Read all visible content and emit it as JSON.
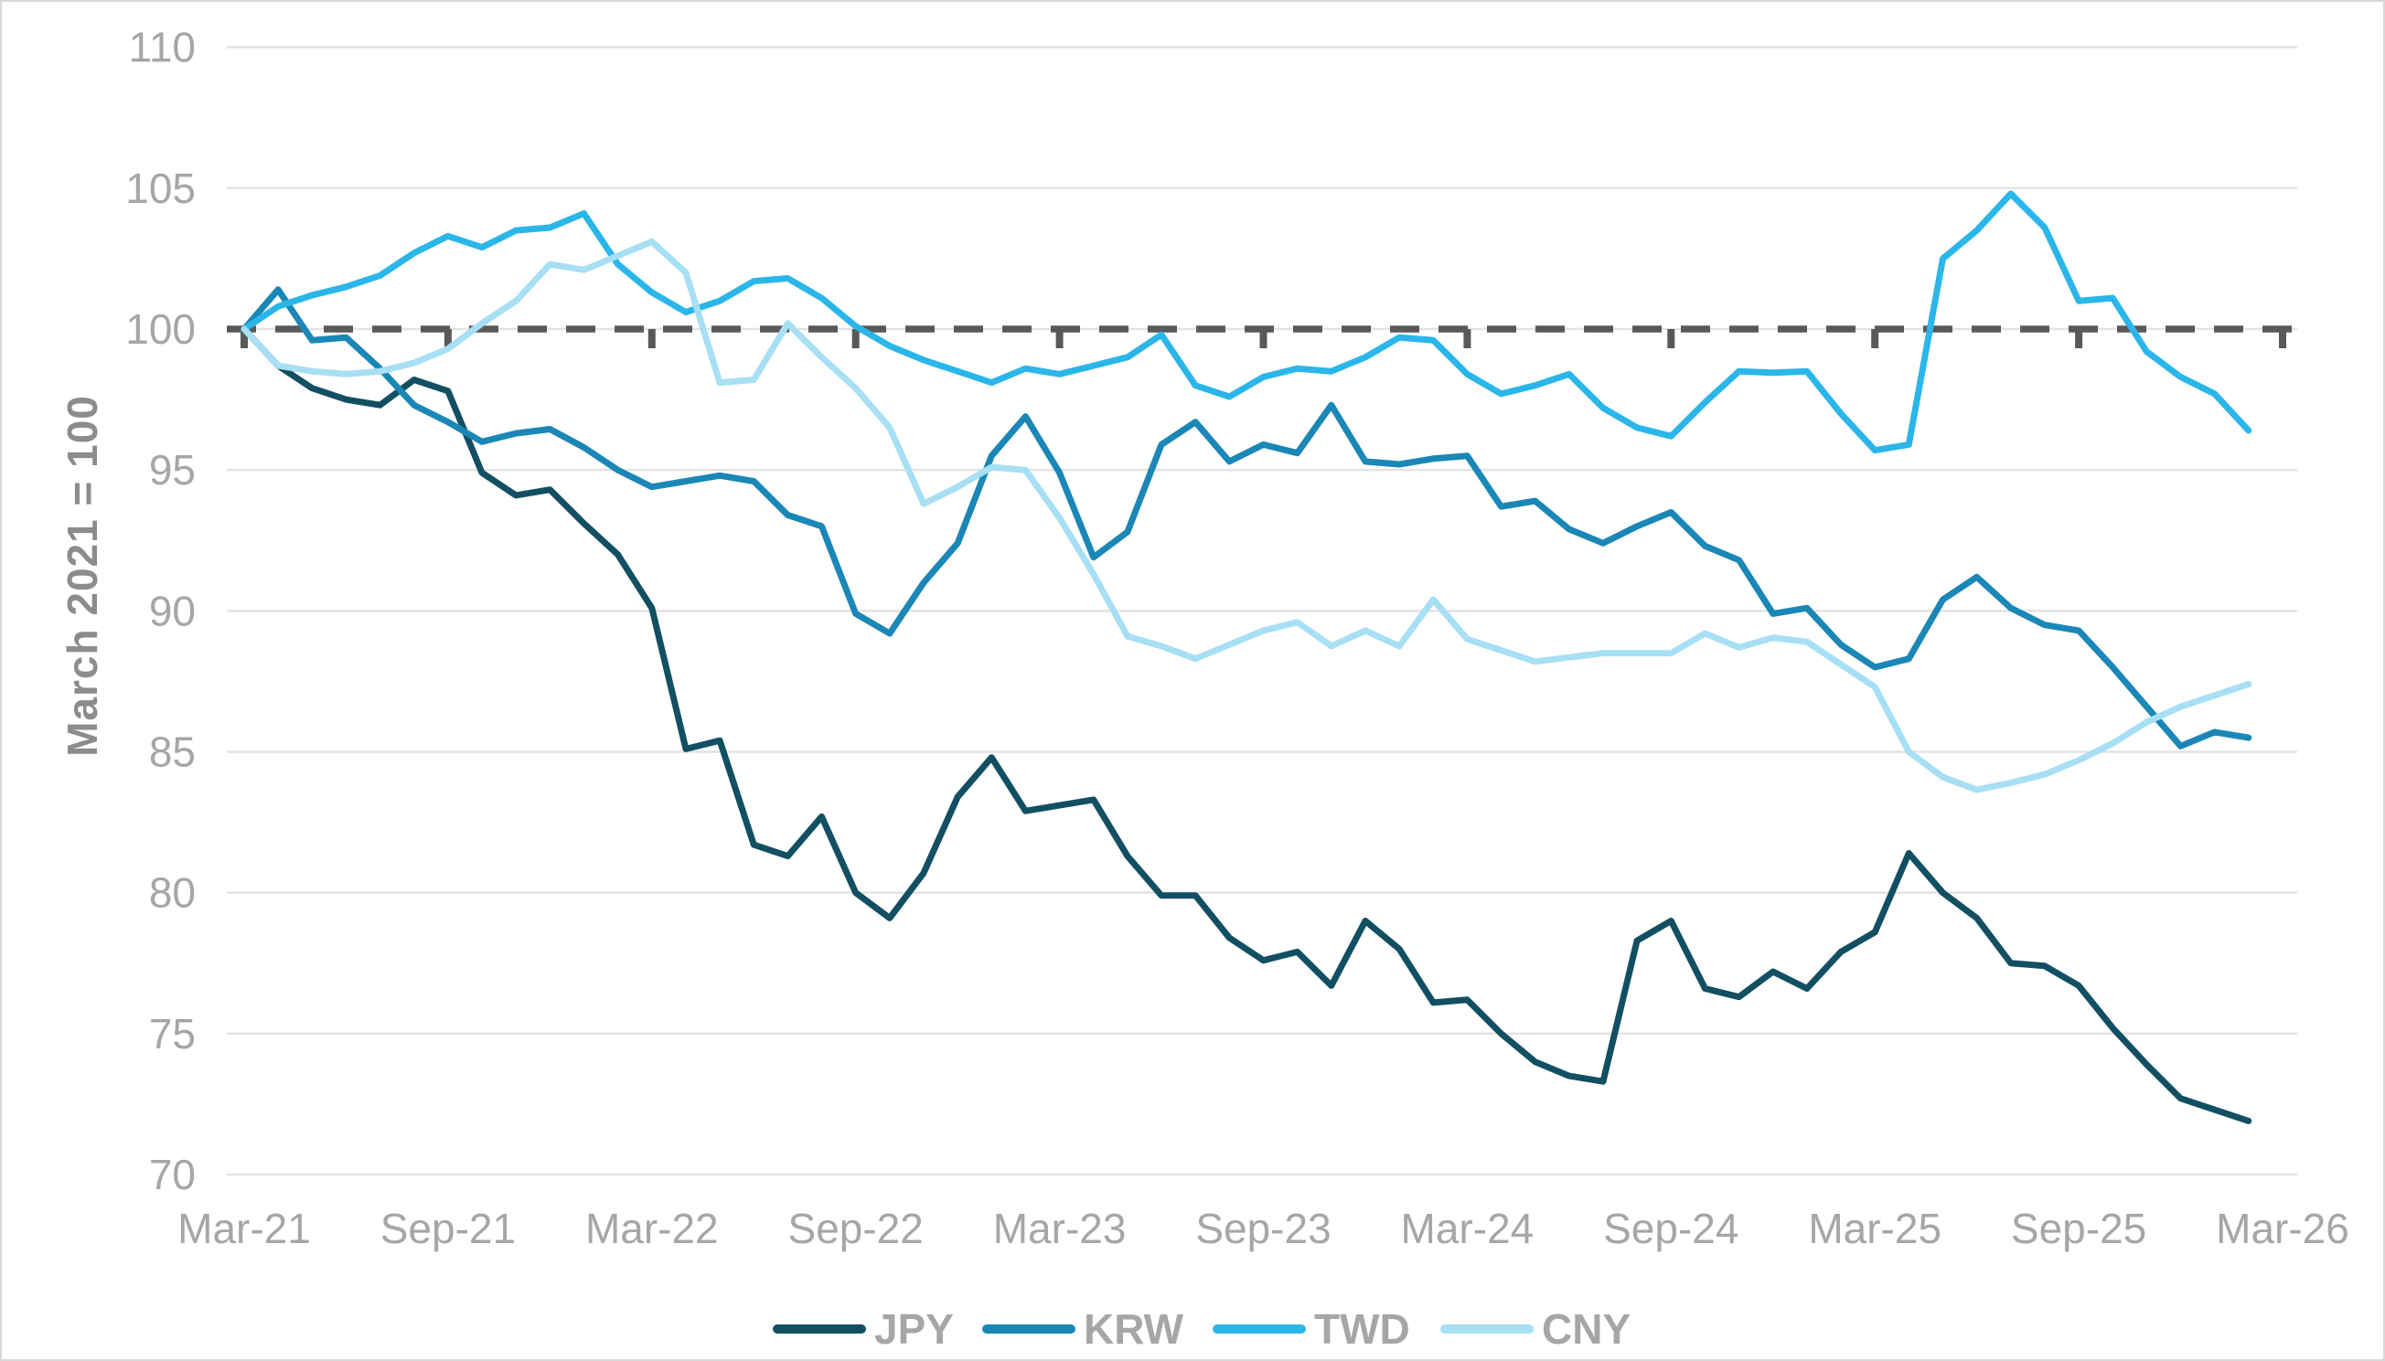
{
  "chart_data": {
    "type": "line",
    "title": "",
    "ylabel": "March 2021 = 100",
    "xlabel": "",
    "ylim": [
      70,
      110
    ],
    "ytick_labels": [
      "70",
      "75",
      "80",
      "85",
      "90",
      "95",
      "100",
      "105",
      "110"
    ],
    "xtick_labels": [
      "Mar-21",
      "Sep-21",
      "Mar-22",
      "Sep-22",
      "Mar-23",
      "Sep-23",
      "Mar-24",
      "Sep-24",
      "Mar-25",
      "Sep-25",
      "Mar-26"
    ],
    "grid": "horizontal-only",
    "legend_position": "bottom",
    "reference_line": {
      "value": 100,
      "style": "dashed",
      "color": "#595959"
    },
    "months": [
      "Mar-21",
      "Apr-21",
      "May-21",
      "Jun-21",
      "Jul-21",
      "Aug-21",
      "Sep-21",
      "Oct-21",
      "Nov-21",
      "Dec-21",
      "Jan-22",
      "Feb-22",
      "Mar-22",
      "Apr-22",
      "May-22",
      "Jun-22",
      "Jul-22",
      "Aug-22",
      "Sep-22",
      "Oct-22",
      "Nov-22",
      "Dec-22",
      "Jan-23",
      "Feb-23",
      "Mar-23",
      "Apr-23",
      "May-23",
      "Jun-23",
      "Jul-23",
      "Aug-23",
      "Sep-23",
      "Oct-23",
      "Nov-23",
      "Dec-23",
      "Jan-24",
      "Feb-24",
      "Mar-24",
      "Apr-24",
      "May-24",
      "Jun-24",
      "Jul-24",
      "Aug-24",
      "Sep-24",
      "Oct-24",
      "Nov-24",
      "Dec-24",
      "Jan-25",
      "Feb-25",
      "Mar-25",
      "Apr-25",
      "May-25",
      "Jun-25",
      "Jul-25",
      "Aug-25",
      "Sep-25",
      "Oct-25",
      "Nov-25",
      "Dec-25",
      "Jan-26",
      "Feb-26"
    ],
    "series": [
      {
        "name": "JPY",
        "color": "#124f62",
        "values": [
          100,
          98.7,
          97.9,
          97.5,
          97.3,
          98.2,
          97.8,
          94.9,
          94.1,
          94.3,
          93.1,
          92.0,
          90.1,
          85.1,
          85.4,
          81.7,
          81.3,
          82.7,
          80.0,
          79.1,
          80.7,
          83.4,
          84.8,
          82.9,
          83.1,
          83.3,
          81.3,
          79.9,
          79.9,
          78.4,
          77.6,
          77.9,
          76.7,
          79.0,
          78.0,
          76.1,
          76.2,
          75.0,
          74.0,
          73.5,
          73.3,
          78.3,
          79.0,
          76.6,
          76.3,
          77.2,
          76.6,
          77.9,
          78.6,
          81.4,
          80.0,
          79.1,
          77.5,
          77.4,
          76.7,
          75.2,
          73.9,
          72.7,
          72.3,
          71.9
        ]
      },
      {
        "name": "KRW",
        "color": "#1a87b6",
        "values": [
          100,
          101.4,
          99.6,
          99.7,
          98.6,
          97.3,
          96.7,
          96.0,
          96.3,
          96.45,
          95.8,
          95.0,
          94.4,
          94.6,
          94.8,
          94.6,
          93.4,
          93.0,
          89.9,
          89.2,
          91.0,
          92.4,
          95.5,
          96.9,
          94.9,
          91.9,
          92.8,
          95.9,
          96.7,
          95.3,
          95.9,
          95.6,
          97.3,
          95.3,
          95.2,
          95.4,
          95.5,
          93.7,
          93.9,
          92.9,
          92.4,
          93.0,
          93.5,
          92.3,
          91.8,
          89.9,
          90.1,
          88.8,
          88.0,
          88.3,
          90.4,
          91.2,
          90.1,
          89.5,
          89.3,
          88.0,
          86.6,
          85.2,
          85.7,
          85.5
        ]
      },
      {
        "name": "TWD",
        "color": "#2bb6e9",
        "values": [
          100,
          100.8,
          101.2,
          101.5,
          101.9,
          102.7,
          103.3,
          102.9,
          103.5,
          103.6,
          104.1,
          102.3,
          101.3,
          100.6,
          101.0,
          101.7,
          101.8,
          101.1,
          100.1,
          99.4,
          98.9,
          98.5,
          98.1,
          98.6,
          98.4,
          98.7,
          99.0,
          99.8,
          98.0,
          97.6,
          98.3,
          98.6,
          98.5,
          99.0,
          99.7,
          99.6,
          98.4,
          97.7,
          98.0,
          98.4,
          97.2,
          96.5,
          96.2,
          97.4,
          98.5,
          98.45,
          98.5,
          97.0,
          95.7,
          95.9,
          102.5,
          103.5,
          104.8,
          103.6,
          101.0,
          101.1,
          99.2,
          98.3,
          97.7,
          96.4
        ]
      },
      {
        "name": "CNY",
        "color": "#a7dff4",
        "values": [
          100,
          98.7,
          98.5,
          98.4,
          98.5,
          98.8,
          99.3,
          100.2,
          101.0,
          102.3,
          102.1,
          102.6,
          103.1,
          102.0,
          98.1,
          98.2,
          100.2,
          99.0,
          97.9,
          96.5,
          93.8,
          94.4,
          95.1,
          95.0,
          93.3,
          91.3,
          89.1,
          88.75,
          88.3,
          88.8,
          89.3,
          89.6,
          88.75,
          89.3,
          88.75,
          90.4,
          89.0,
          88.6,
          88.2,
          88.35,
          88.5,
          88.5,
          88.5,
          89.2,
          88.7,
          89.05,
          88.9,
          88.1,
          87.3,
          85.0,
          84.1,
          83.65,
          83.9,
          84.2,
          84.7,
          85.3,
          86.05,
          86.6,
          87.0,
          87.4
        ]
      }
    ]
  },
  "colors": {
    "grid": "#e3e3e3",
    "reference_dash": "#595959",
    "tick_text": "#a6a6a6",
    "axis_title": "#8c8c8c",
    "legend_text": "#a6a6a6",
    "background": "#ffffff",
    "frame_border": "#d8d8d8"
  }
}
